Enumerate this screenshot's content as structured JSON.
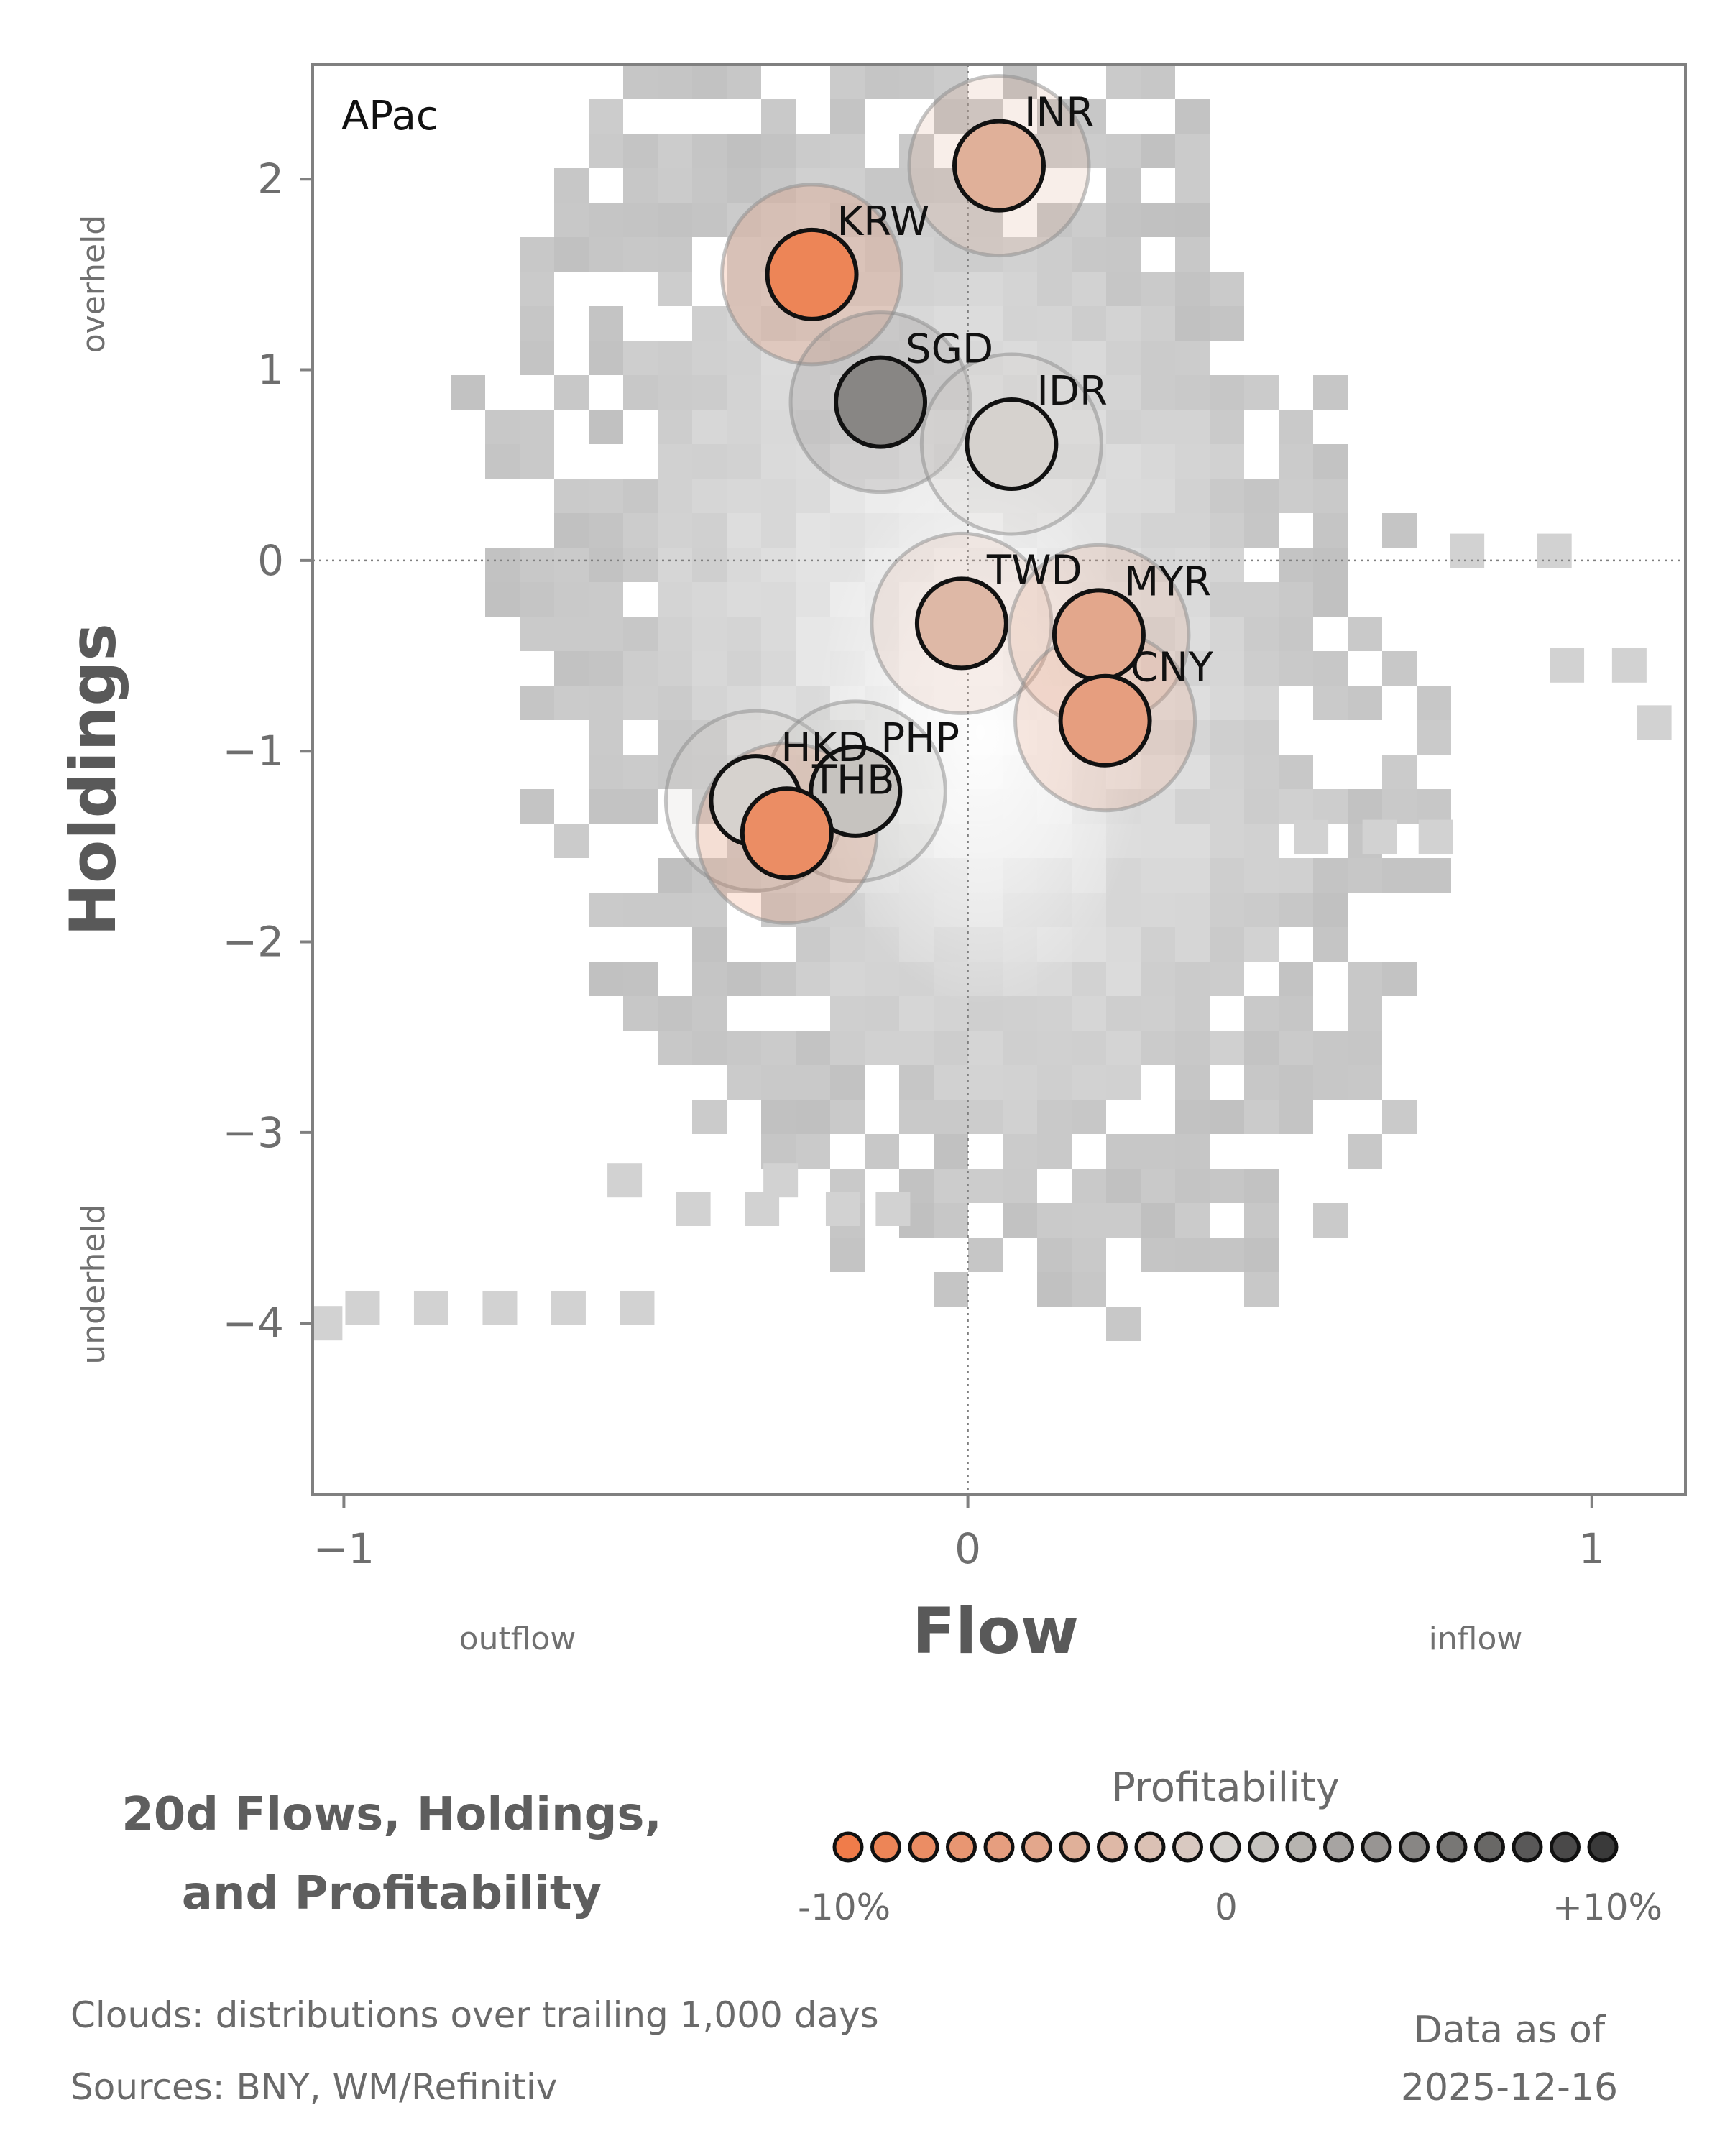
{
  "chart_data": {
    "type": "scatter",
    "panel_label": "APac",
    "xlabel": "Flow",
    "ylabel": "Holdings",
    "x_side_labels": {
      "left": "outflow",
      "right": "inflow"
    },
    "y_side_labels": {
      "top": "overheld",
      "bottom": "underheld"
    },
    "xlim": [
      -1.05,
      1.15
    ],
    "ylim": [
      -4.9,
      2.6
    ],
    "xticks": [
      -1,
      0,
      1
    ],
    "xtick_labels": [
      "−1",
      "0",
      "1"
    ],
    "yticks": [
      2,
      1,
      0,
      -1,
      -2,
      -3,
      -4
    ],
    "ytick_labels": [
      "2",
      "1",
      "0",
      "−1",
      "−2",
      "−3",
      "−4"
    ],
    "points": [
      {
        "label": "INR",
        "x": 0.05,
        "y": 2.07,
        "profitability": -4
      },
      {
        "label": "KRW",
        "x": -0.25,
        "y": 1.5,
        "profitability": -9
      },
      {
        "label": "SGD",
        "x": -0.14,
        "y": 0.83,
        "profitability": 5
      },
      {
        "label": "IDR",
        "x": 0.07,
        "y": 0.61,
        "profitability": 0
      },
      {
        "label": "TWD",
        "x": -0.01,
        "y": -0.33,
        "profitability": -3
      },
      {
        "label": "MYR",
        "x": 0.21,
        "y": -0.39,
        "profitability": -5
      },
      {
        "label": "CNY",
        "x": 0.22,
        "y": -0.84,
        "profitability": -6
      },
      {
        "label": "HKD",
        "x": -0.34,
        "y": -1.26,
        "profitability": 0
      },
      {
        "label": "PHP",
        "x": -0.18,
        "y": -1.21,
        "profitability": 1
      },
      {
        "label": "THB",
        "x": -0.29,
        "y": -1.43,
        "profitability": -8
      }
    ]
  },
  "title": {
    "line1": "20d Flows, Holdings,",
    "line2": "and Profitability"
  },
  "legend": {
    "title": "Profitability",
    "min_label": "-10%",
    "mid_label": "0",
    "max_label": "+10%"
  },
  "footer": {
    "clouds": "Clouds:  distributions over trailing 1,000 days",
    "sources": "Sources:  BNY, WM/Refinitiv",
    "as_of_label": "Data as of",
    "as_of_date": "2025-12-16"
  },
  "colors": {
    "neg": "#f07c4a",
    "neutral": "#d6d2ce",
    "pos": "#3a3a3a",
    "axis": "#808080"
  }
}
